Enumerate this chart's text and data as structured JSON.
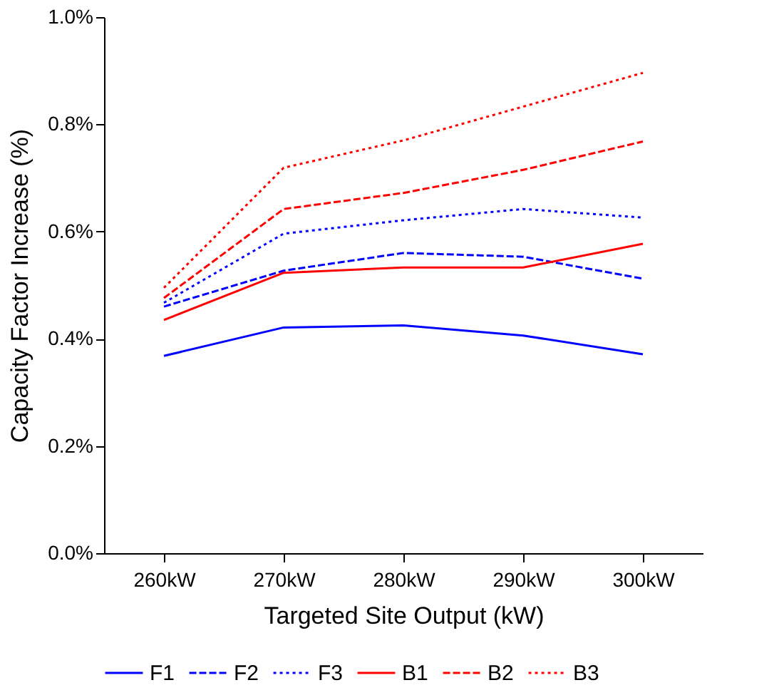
{
  "chart_data": {
    "type": "line",
    "xlabel": "Targeted Site Output (kW)",
    "ylabel": "Capacity Factor Increase (%)",
    "categories": [
      "260kW",
      "270kW",
      "280kW",
      "290kW",
      "300kW"
    ],
    "ylim": [
      0,
      1.0
    ],
    "yticks": [
      {
        "value": 0,
        "label": "0.0%"
      },
      {
        "value": 0.2,
        "label": "0.2%"
      },
      {
        "value": 0.4,
        "label": "0.4%"
      },
      {
        "value": 0.6,
        "label": "0.6%"
      },
      {
        "value": 0.8,
        "label": "0.8%"
      },
      {
        "value": 1.0,
        "label": "1.0%"
      }
    ],
    "grid": false,
    "legend": "bottom",
    "marker": "none",
    "series": [
      {
        "name": "F1",
        "color": "#0000ff",
        "line_style": "solid",
        "values": [
          0.368,
          0.421,
          0.425,
          0.406,
          0.371
        ]
      },
      {
        "name": "F2",
        "color": "#0000ff",
        "line_style": "dashed",
        "values": [
          0.46,
          0.527,
          0.56,
          0.553,
          0.512
        ]
      },
      {
        "name": "F3",
        "color": "#0000ff",
        "line_style": "dotted",
        "values": [
          0.467,
          0.596,
          0.621,
          0.642,
          0.626
        ]
      },
      {
        "name": "B1",
        "color": "#ff0000",
        "line_style": "solid",
        "values": [
          0.435,
          0.523,
          0.533,
          0.533,
          0.577
        ]
      },
      {
        "name": "B2",
        "color": "#ff0000",
        "line_style": "dashed",
        "values": [
          0.476,
          0.642,
          0.672,
          0.715,
          0.768
        ]
      },
      {
        "name": "B3",
        "color": "#ff0000",
        "line_style": "dotted",
        "values": [
          0.495,
          0.719,
          0.77,
          0.833,
          0.896
        ]
      }
    ]
  }
}
